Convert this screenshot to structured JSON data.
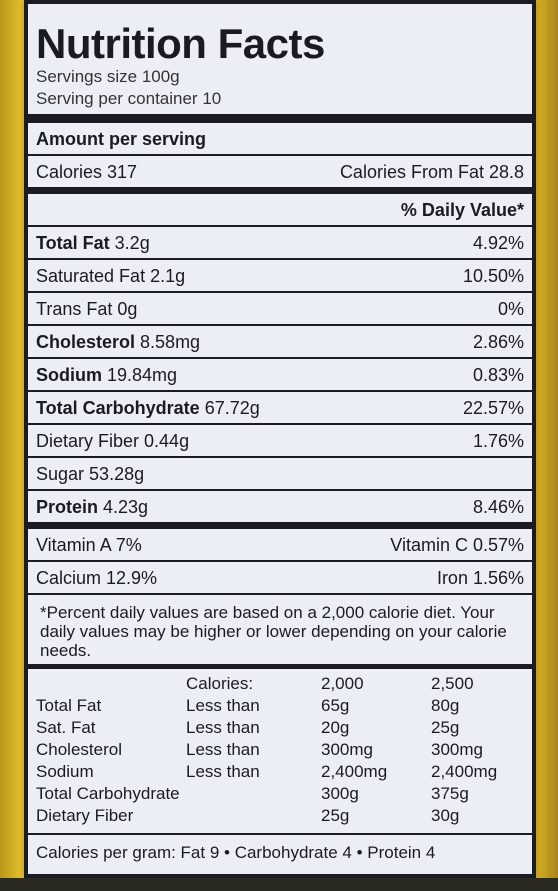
{
  "label": {
    "title": "Nutrition Facts",
    "serving_size": "Servings size 100g",
    "servings_per_container": "Serving per container 10",
    "amount_per_serving": "Amount per serving",
    "calories": "Calories 317",
    "calories_from_fat": "Calories From Fat 28.8",
    "daily_value_header": "% Daily Value*",
    "nutrients": [
      {
        "name": "Total Fat",
        "amount": " 3.2g",
        "dv": "4.92%"
      },
      {
        "name": "Saturated Fat",
        "amount": " 2.1g",
        "dv": "10.50%"
      },
      {
        "name": "Trans Fat",
        "amount": " 0g",
        "dv": "0%"
      },
      {
        "name": "Cholesterol",
        "amount": " 8.58mg",
        "dv": "2.86%"
      },
      {
        "name": "Sodium",
        "amount": " 19.84mg",
        "dv": "0.83%"
      },
      {
        "name": "Total Carbohydrate",
        "amount": " 67.72g",
        "dv": "22.57%"
      },
      {
        "name": "Dietary Fiber",
        "amount": " 0.44g",
        "dv": "1.76%"
      },
      {
        "name": "Sugar",
        "amount": " 53.28g",
        "dv": ""
      },
      {
        "name": "Protein",
        "amount": " 4.23g",
        "dv": "8.46%"
      }
    ],
    "vitamin_a": "Vitamin A 7%",
    "vitamin_c": "Vitamin C 0.57%",
    "calcium": "Calcium 12.9%",
    "iron": "Iron 1.56%",
    "footnote": "*Percent daily values are based on a 2,000 calorie diet. Your daily values may be higher or lower depending on your calorie needs.",
    "reference": {
      "header": [
        "",
        "Calories:",
        "2,000",
        "2,500"
      ],
      "rows": [
        [
          "Total Fat",
          "Less than",
          "65g",
          "80g"
        ],
        [
          "Sat. Fat",
          "Less than",
          "20g",
          "25g"
        ],
        [
          "Cholesterol",
          "Less than",
          "300mg",
          "300mg"
        ],
        [
          "Sodium",
          "Less than",
          "2,400mg",
          "2,400mg"
        ],
        [
          "Total Carbohydrate",
          "",
          "300g",
          "375g"
        ],
        [
          "Dietary Fiber",
          "",
          "25g",
          "30g"
        ]
      ]
    },
    "calories_per_gram": "Calories per gram: Fat 9 • Carbohydrate 4 • Protein 4"
  }
}
